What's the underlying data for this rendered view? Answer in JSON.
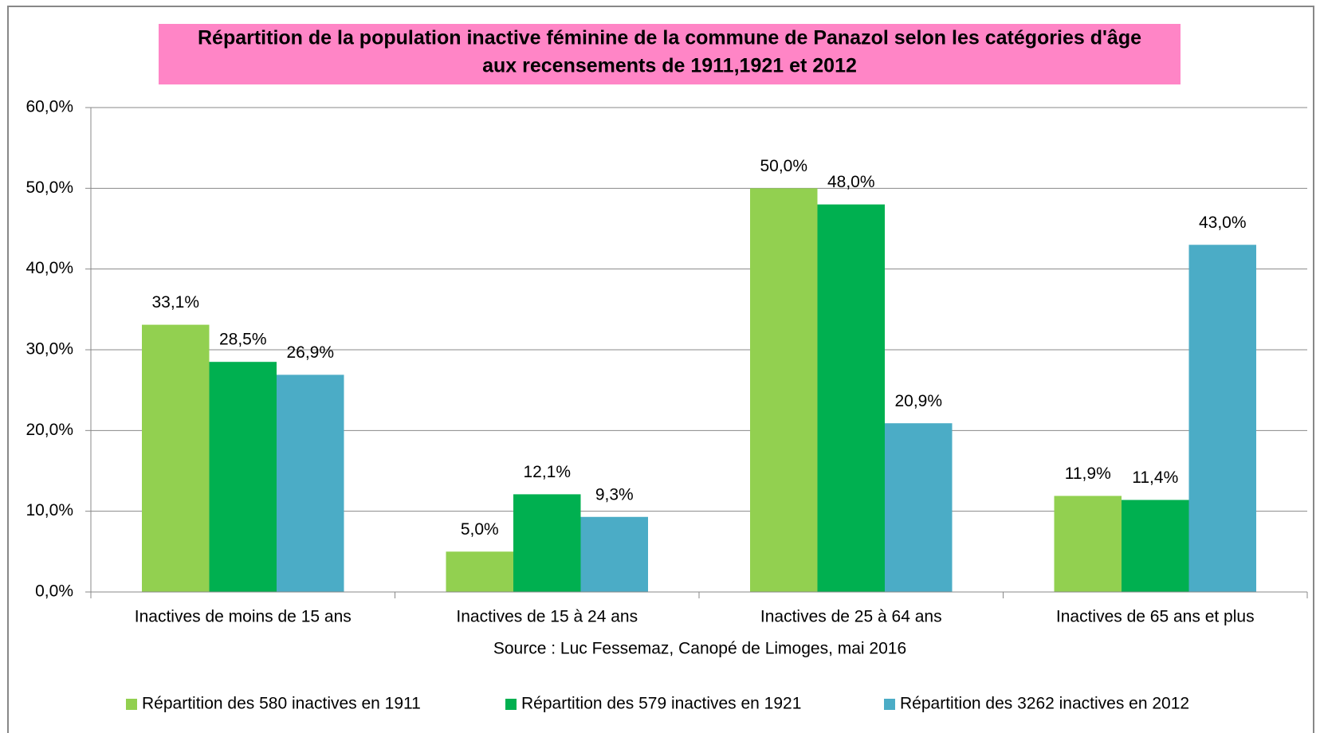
{
  "chart_data": {
    "type": "bar",
    "title": [
      "Répartition de la population inactive féminine de la commune de Panazol selon les catégories d'âge",
      "aux recensements de 1911,1921 et 2012"
    ],
    "categories": [
      "Inactives de moins de 15 ans",
      "Inactives de 15 à 24 ans",
      "Inactives de 25 à 64 ans",
      "Inactives de 65 ans et plus"
    ],
    "series": [
      {
        "name": "Répartition des 580 inactives en 1911",
        "color": "#92d050",
        "values": [
          33.1,
          5.0,
          50.0,
          11.9
        ],
        "value_labels": [
          "33,1%",
          "5,0%",
          "50,0%",
          "11,9%"
        ]
      },
      {
        "name": "Répartition des 579 inactives en 1921",
        "color": "#00b050",
        "values": [
          28.5,
          12.1,
          48.0,
          11.4
        ],
        "value_labels": [
          "28,5%",
          "12,1%",
          "48,0%",
          "11,4%"
        ]
      },
      {
        "name": "Répartition des 3262 inactives en 2012",
        "color": "#4bacc6",
        "values": [
          26.9,
          9.3,
          20.9,
          43.0
        ],
        "value_labels": [
          "26,9%",
          "9,3%",
          "20,9%",
          "43,0%"
        ]
      }
    ],
    "ylim": [
      0,
      60
    ],
    "yticks": [
      {
        "value": 0,
        "label": "0,0%"
      },
      {
        "value": 10,
        "label": "10,0%"
      },
      {
        "value": 20,
        "label": "20,0%"
      },
      {
        "value": 30,
        "label": "30,0%"
      },
      {
        "value": 40,
        "label": "40,0%"
      },
      {
        "value": 50,
        "label": "50,0%"
      },
      {
        "value": 60,
        "label": "60,0%"
      }
    ],
    "grid": true,
    "source": "Source : Luc Fessemaz, Canopé de Limoges, mai 2016",
    "legend": "bottom"
  }
}
